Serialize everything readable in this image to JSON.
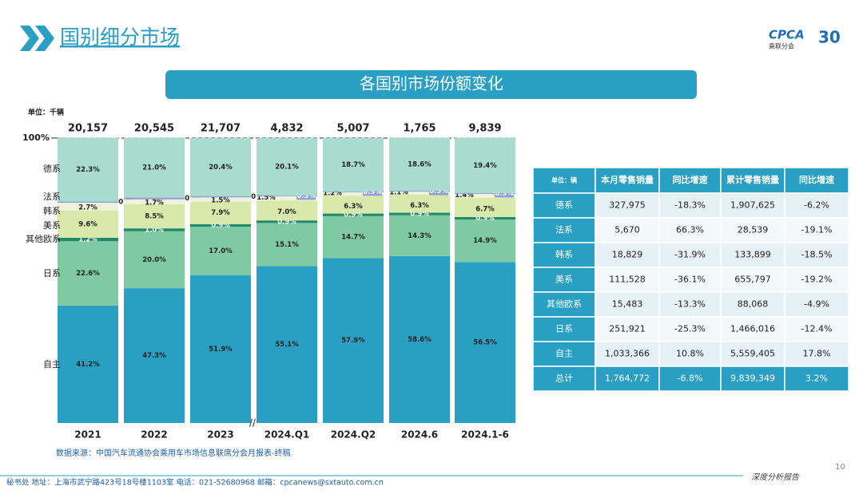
{
  "header": {
    "title": "国别细分市场",
    "logo": "CPCA",
    "logo_sub": "乘联分会",
    "anniversary": "30"
  },
  "banner": "各国别市场份额变化",
  "chart_data": {
    "type": "stacked_bar",
    "unit": "单位：千辆",
    "categories": [
      "2021",
      "2022",
      "2023",
      "2024.Q1",
      "2024.Q2",
      "2024.6",
      "2024.1-6"
    ],
    "totals": {
      "values": [
        20157,
        20545,
        21707,
        4832,
        5007,
        1765,
        9839
      ],
      "value_labels": [
        "20,157",
        "20,545",
        "21,707",
        "4,832",
        "5,007",
        "1,765",
        "9,839"
      ]
    },
    "ylim": [
      0,
      100
    ],
    "yticks": [
      {
        "value": 100,
        "label": "100%"
      }
    ],
    "series": [
      {
        "name": "自主",
        "color": "#2a9fc4",
        "values": [
          41.2,
          47.3,
          51.9,
          55.1,
          57.9,
          58.6,
          56.5
        ],
        "value_labels": [
          "41.2%",
          "47.3%",
          "51.9%",
          "55.1%",
          "57.9%",
          "58.6%",
          "56.5%"
        ]
      },
      {
        "name": "日系",
        "color": "#7fcaa2",
        "values": [
          22.6,
          20.0,
          17.0,
          15.1,
          14.7,
          14.3,
          14.9
        ],
        "value_labels": [
          "22.6%",
          "20.0%",
          "17.0%",
          "15.1%",
          "14.7%",
          "14.3%",
          "14.9%"
        ]
      },
      {
        "name": "其他欧系",
        "color": "#1e8a6c",
        "values": [
          1.2,
          1.0,
          0.9,
          0.9,
          0.9,
          0.9,
          0.9
        ],
        "value_labels": [
          "1.2%",
          "1.0%",
          "0.9%",
          "0.9%",
          "0.9%",
          "0.9%",
          "0.9%"
        ]
      },
      {
        "name": "美系",
        "color": "#d9e9ab",
        "values": [
          9.6,
          8.5,
          7.9,
          7.0,
          6.3,
          6.3,
          6.7
        ],
        "value_labels": [
          "9.6%",
          "8.5%",
          "7.9%",
          "7.0%",
          "6.3%",
          "6.3%",
          "6.7%"
        ]
      },
      {
        "name": "韩系",
        "color": "#eef3d9",
        "values": [
          2.7,
          1.7,
          1.5,
          1.5,
          1.2,
          1.1,
          1.4
        ],
        "value_labels": [
          "2.7%",
          "1.7%",
          "1.5%",
          "1.5%",
          "1.2%",
          "1.1%",
          "1.4%"
        ]
      },
      {
        "name": "法系",
        "color": "#8e9fd9",
        "values": [
          0.5,
          0.6,
          0.4,
          0.3,
          0.3,
          0.3,
          0.3
        ],
        "value_labels": [
          "0.5%",
          "0.6%",
          "0.4%",
          "0.3%",
          "0.3%",
          "0.3%",
          "0.3%"
        ]
      },
      {
        "name": "德系",
        "color": "#a9dccf",
        "values": [
          22.3,
          21.0,
          20.4,
          20.1,
          18.7,
          18.6,
          19.4
        ],
        "value_labels": [
          "22.3%",
          "21.0%",
          "20.4%",
          "20.1%",
          "18.7%",
          "18.6%",
          "19.4%"
        ]
      }
    ]
  },
  "table": {
    "header": [
      "单位：辆",
      "本月零售销量",
      "同比增速",
      "累计零售销量",
      "同比增速"
    ],
    "rows": [
      [
        "德系",
        "327,975",
        "-18.3%",
        "1,907,625",
        "-6.2%"
      ],
      [
        "法系",
        "5,670",
        "66.3%",
        "28,539",
        "-19.1%"
      ],
      [
        "韩系",
        "18,829",
        "-31.9%",
        "133,899",
        "-18.5%"
      ],
      [
        "美系",
        "111,528",
        "-36.1%",
        "655,797",
        "-19.2%"
      ],
      [
        "其他欧系",
        "15,483",
        "-13.3%",
        "88,068",
        "-4.9%"
      ],
      [
        "日系",
        "251,921",
        "-25.3%",
        "1,466,016",
        "-12.4%"
      ],
      [
        "自主",
        "1,033,366",
        "10.8%",
        "5,559,405",
        "17.8%"
      ]
    ],
    "total": [
      "总计",
      "1,764,772",
      "-6.8%",
      "9,839,349",
      "3.2%"
    ]
  },
  "source": "数据来源：中国汽车流通协会乘用车市场信息联席分会月报表-终稿",
  "page_number": "10",
  "footer": {
    "contact": "秘书处   地址：上海市武宁路423号18号楼1103室    电话：021-52680968    邮箱：cpcanews@sxtauto.com.cn",
    "report": "深度分析报告"
  }
}
